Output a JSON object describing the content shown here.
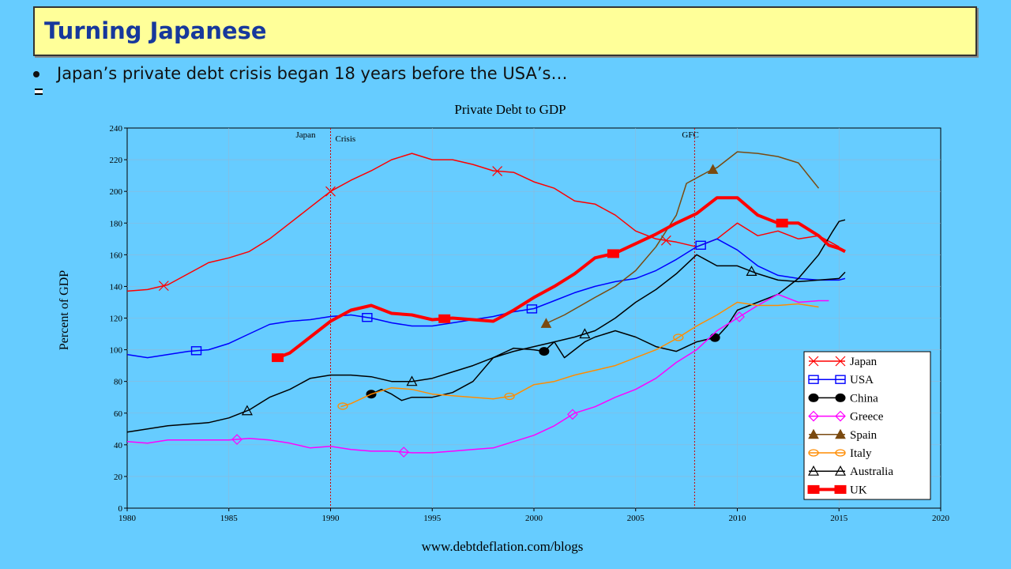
{
  "slide": {
    "title": "Turning Japanese",
    "bullet": "Japan’s private debt crisis began 18 years before the USA’s…",
    "footer": "www.debtdeflation.com/blogs"
  },
  "chart_data": {
    "type": "line",
    "title": "Private Debt to GDP",
    "xlabel": "",
    "ylabel": "Percent of GDP",
    "xlim": [
      1980,
      2020
    ],
    "ylim": [
      0,
      240
    ],
    "xticks": [
      1980,
      1985,
      1990,
      1995,
      2000,
      2005,
      2010,
      2015,
      2020
    ],
    "yticks": [
      0,
      20,
      40,
      60,
      80,
      100,
      120,
      140,
      160,
      180,
      200,
      220,
      240
    ],
    "grid": true,
    "legend_position": "bottom-right",
    "annotations": [
      {
        "text": "Japan",
        "x": 1990.0
      },
      {
        "text": "Crisis",
        "x": 1990.0
      },
      {
        "text": "GFC",
        "x": 2007.9
      }
    ],
    "vlines": [
      1990.0,
      2007.9
    ],
    "series": [
      {
        "name": "Japan",
        "color": "#ff0000",
        "marker": "x",
        "width": 1.5,
        "points": [
          [
            1980,
            137
          ],
          [
            1981,
            138
          ],
          [
            1982,
            141
          ],
          [
            1983,
            148
          ],
          [
            1984,
            155
          ],
          [
            1985,
            158
          ],
          [
            1986,
            162
          ],
          [
            1987,
            170
          ],
          [
            1988,
            180
          ],
          [
            1989,
            190
          ],
          [
            1990,
            200
          ],
          [
            1991,
            207
          ],
          [
            1992,
            213
          ],
          [
            1993,
            220
          ],
          [
            1994,
            224
          ],
          [
            1995,
            220
          ],
          [
            1996,
            220
          ],
          [
            1997,
            217
          ],
          [
            1998,
            213
          ],
          [
            1999,
            212
          ],
          [
            2000,
            206
          ],
          [
            2001,
            202
          ],
          [
            2002,
            194
          ],
          [
            2003,
            192
          ],
          [
            2004,
            185
          ],
          [
            2005,
            175
          ],
          [
            2006,
            170
          ],
          [
            2007,
            168
          ],
          [
            2008,
            165
          ],
          [
            2009,
            170
          ],
          [
            2010,
            180
          ],
          [
            2011,
            172
          ],
          [
            2012,
            175
          ],
          [
            2013,
            170
          ],
          [
            2014,
            172
          ],
          [
            2015,
            165
          ]
        ]
      },
      {
        "name": "USA",
        "color": "#0000ff",
        "marker": "square",
        "width": 1.5,
        "points": [
          [
            1980,
            97
          ],
          [
            1981,
            95
          ],
          [
            1982,
            97
          ],
          [
            1983,
            99
          ],
          [
            1984,
            100
          ],
          [
            1985,
            104
          ],
          [
            1986,
            110
          ],
          [
            1987,
            116
          ],
          [
            1988,
            118
          ],
          [
            1989,
            119
          ],
          [
            1990,
            121
          ],
          [
            1991,
            122
          ],
          [
            1992,
            120
          ],
          [
            1993,
            117
          ],
          [
            1994,
            115
          ],
          [
            1995,
            115
          ],
          [
            1996,
            117
          ],
          [
            1997,
            119
          ],
          [
            1998,
            121
          ],
          [
            1999,
            124
          ],
          [
            2000,
            126
          ],
          [
            2001,
            131
          ],
          [
            2002,
            136
          ],
          [
            2003,
            140
          ],
          [
            2004,
            143
          ],
          [
            2005,
            145
          ],
          [
            2006,
            150
          ],
          [
            2007,
            157
          ],
          [
            2008,
            165
          ],
          [
            2009,
            170
          ],
          [
            2010,
            163
          ],
          [
            2011,
            153
          ],
          [
            2012,
            147
          ],
          [
            2013,
            145
          ],
          [
            2014,
            144
          ],
          [
            2015,
            144
          ],
          [
            2015.3,
            145
          ]
        ]
      },
      {
        "name": "China",
        "color": "#000000",
        "marker": "circle",
        "width": 1.5,
        "points": [
          [
            1992,
            72
          ],
          [
            1992.5,
            75
          ],
          [
            1993,
            72
          ],
          [
            1993.5,
            68
          ],
          [
            1994,
            70
          ],
          [
            1995,
            70
          ],
          [
            1996,
            73
          ],
          [
            1997,
            80
          ],
          [
            1998,
            95
          ],
          [
            1999,
            101
          ],
          [
            2000,
            100
          ],
          [
            2000.5,
            99
          ],
          [
            2001,
            105
          ],
          [
            2001.5,
            95
          ],
          [
            2002,
            100
          ],
          [
            2002.5,
            105
          ],
          [
            2003,
            108
          ],
          [
            2004,
            112
          ],
          [
            2005,
            108
          ],
          [
            2006,
            102
          ],
          [
            2007,
            99
          ],
          [
            2008,
            105
          ],
          [
            2009,
            108
          ],
          [
            2009.5,
            115
          ],
          [
            2010,
            125
          ],
          [
            2011,
            130
          ],
          [
            2012,
            135
          ],
          [
            2013,
            145
          ],
          [
            2014,
            160
          ],
          [
            2014.7,
            175
          ],
          [
            2015,
            181
          ],
          [
            2015.3,
            182
          ]
        ]
      },
      {
        "name": "Greece",
        "color": "#ff00ff",
        "marker": "diamond",
        "width": 1.5,
        "points": [
          [
            1980,
            42
          ],
          [
            1981,
            41
          ],
          [
            1982,
            43
          ],
          [
            1983,
            43
          ],
          [
            1984,
            43
          ],
          [
            1985,
            43
          ],
          [
            1986,
            44
          ],
          [
            1987,
            43
          ],
          [
            1988,
            41
          ],
          [
            1989,
            38
          ],
          [
            1990,
            39
          ],
          [
            1991,
            37
          ],
          [
            1992,
            36
          ],
          [
            1993,
            36
          ],
          [
            1994,
            35
          ],
          [
            1995,
            35
          ],
          [
            1996,
            36
          ],
          [
            1997,
            37
          ],
          [
            1998,
            38
          ],
          [
            1999,
            42
          ],
          [
            2000,
            46
          ],
          [
            2001,
            52
          ],
          [
            2002,
            60
          ],
          [
            2003,
            64
          ],
          [
            2004,
            70
          ],
          [
            2005,
            75
          ],
          [
            2006,
            82
          ],
          [
            2007,
            92
          ],
          [
            2008,
            100
          ],
          [
            2009,
            112
          ],
          [
            2010,
            120
          ],
          [
            2011,
            128
          ],
          [
            2012,
            135
          ],
          [
            2013,
            130
          ],
          [
            2014,
            131
          ],
          [
            2014.5,
            131
          ]
        ]
      },
      {
        "name": "Spain",
        "color": "#7a4a10",
        "marker": "triangle-filled",
        "width": 1.5,
        "points": [
          [
            2000.5,
            116
          ],
          [
            2001.5,
            122
          ],
          [
            2003,
            133
          ],
          [
            2004,
            140
          ],
          [
            2005,
            150
          ],
          [
            2006,
            165
          ],
          [
            2007,
            185
          ],
          [
            2007.5,
            205
          ],
          [
            2008.5,
            212
          ],
          [
            2009,
            215
          ],
          [
            2010,
            225
          ],
          [
            2011,
            224
          ],
          [
            2012,
            222
          ],
          [
            2013,
            218
          ],
          [
            2013.5,
            210
          ],
          [
            2014,
            202
          ]
        ]
      },
      {
        "name": "Italy",
        "color": "#ff8c00",
        "marker": "circle-open",
        "width": 1.5,
        "points": [
          [
            1990.5,
            64
          ],
          [
            1991,
            66
          ],
          [
            1992,
            72
          ],
          [
            1993,
            76
          ],
          [
            1994,
            75
          ],
          [
            1995,
            72
          ],
          [
            1996,
            71
          ],
          [
            1997,
            70
          ],
          [
            1998,
            69
          ],
          [
            1999,
            71
          ],
          [
            2000,
            78
          ],
          [
            2001,
            80
          ],
          [
            2002,
            84
          ],
          [
            2003,
            87
          ],
          [
            2004,
            90
          ],
          [
            2005,
            95
          ],
          [
            2006,
            100
          ],
          [
            2007,
            107
          ],
          [
            2008,
            115
          ],
          [
            2009,
            122
          ],
          [
            2010,
            130
          ],
          [
            2011,
            128
          ],
          [
            2012,
            128
          ],
          [
            2013,
            129
          ],
          [
            2014,
            127
          ]
        ]
      },
      {
        "name": "Australia",
        "color": "#000000",
        "marker": "triangle-open",
        "width": 1.5,
        "points": [
          [
            1980,
            48
          ],
          [
            1981,
            50
          ],
          [
            1982,
            52
          ],
          [
            1983,
            53
          ],
          [
            1984,
            54
          ],
          [
            1985,
            57
          ],
          [
            1986,
            62
          ],
          [
            1987,
            70
          ],
          [
            1988,
            75
          ],
          [
            1989,
            82
          ],
          [
            1990,
            84
          ],
          [
            1991,
            84
          ],
          [
            1992,
            83
          ],
          [
            1993,
            80
          ],
          [
            1994,
            80
          ],
          [
            1995,
            82
          ],
          [
            1996,
            86
          ],
          [
            1997,
            90
          ],
          [
            1998,
            95
          ],
          [
            1999,
            99
          ],
          [
            2000,
            102
          ],
          [
            2001,
            105
          ],
          [
            2002,
            108
          ],
          [
            2003,
            112
          ],
          [
            2004,
            120
          ],
          [
            2005,
            130
          ],
          [
            2006,
            138
          ],
          [
            2007,
            148
          ],
          [
            2008,
            160
          ],
          [
            2009,
            153
          ],
          [
            2010,
            153
          ],
          [
            2011,
            148
          ],
          [
            2012,
            144
          ],
          [
            2013,
            143
          ],
          [
            2014,
            144
          ],
          [
            2015,
            145
          ],
          [
            2015.3,
            149
          ]
        ]
      },
      {
        "name": "UK",
        "color": "#ff0000",
        "marker": "square-filled",
        "width": 4,
        "points": [
          [
            1987.2,
            94
          ],
          [
            1988,
            98
          ],
          [
            1989,
            108
          ],
          [
            1990,
            118
          ],
          [
            1991,
            125
          ],
          [
            1992,
            128
          ],
          [
            1993,
            123
          ],
          [
            1994,
            122
          ],
          [
            1995,
            119
          ],
          [
            1996,
            120
          ],
          [
            1997,
            119
          ],
          [
            1998,
            118
          ],
          [
            1999,
            125
          ],
          [
            2000,
            133
          ],
          [
            2001,
            140
          ],
          [
            2002,
            148
          ],
          [
            2003,
            158
          ],
          [
            2004,
            161
          ],
          [
            2005,
            167
          ],
          [
            2006,
            173
          ],
          [
            2007,
            180
          ],
          [
            2008,
            186
          ],
          [
            2009,
            196
          ],
          [
            2010,
            196
          ],
          [
            2011,
            185
          ],
          [
            2012,
            180
          ],
          [
            2013,
            180
          ],
          [
            2014,
            172
          ],
          [
            2014.5,
            166
          ],
          [
            2015,
            164
          ],
          [
            2015.3,
            162
          ]
        ]
      }
    ]
  }
}
